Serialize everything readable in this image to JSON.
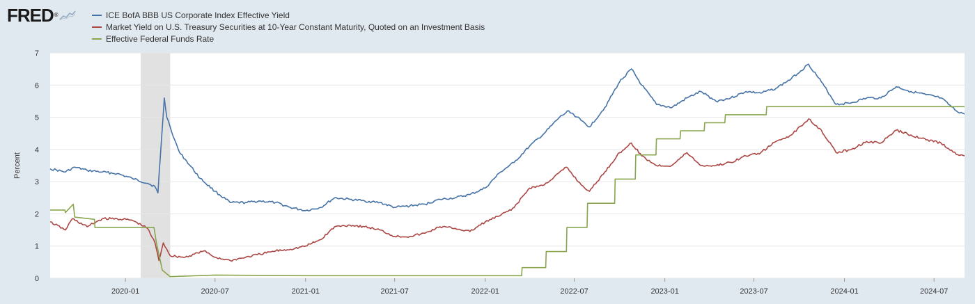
{
  "logo": {
    "text": "FRED",
    "reg": "®",
    "icon": "line-chart-icon"
  },
  "chart_data": {
    "type": "line",
    "title": "",
    "xlabel": "",
    "ylabel": "Percent",
    "ylim": [
      0,
      7
    ],
    "yticks": [
      "0",
      "1",
      "2",
      "3",
      "4",
      "5",
      "6",
      "7"
    ],
    "xticks": [
      "2020-01",
      "2020-07",
      "2021-01",
      "2021-07",
      "2022-01",
      "2022-07",
      "2023-01",
      "2023-07",
      "2024-01",
      "2024-07"
    ],
    "x_range": [
      "2019-08",
      "2024-09"
    ],
    "grid": true,
    "legend": "top-left",
    "recession": {
      "start": "2020-02",
      "end": "2020-04",
      "color": "#e1e1e1"
    },
    "series": [
      {
        "name": "ICE BofA BBB US Corporate Index Effective Yield",
        "color": "#4572a7",
        "points": [
          [
            "2019-08-01",
            3.4
          ],
          [
            "2019-09-01",
            3.3
          ],
          [
            "2019-09-20",
            3.45
          ],
          [
            "2019-10-15",
            3.35
          ],
          [
            "2019-11-15",
            3.3
          ],
          [
            "2019-12-15",
            3.25
          ],
          [
            "2020-01-15",
            3.1
          ],
          [
            "2020-02-15",
            2.95
          ],
          [
            "2020-03-01",
            2.85
          ],
          [
            "2020-03-07",
            2.65
          ],
          [
            "2020-03-12",
            3.8
          ],
          [
            "2020-03-20",
            5.6
          ],
          [
            "2020-03-25",
            5.0
          ],
          [
            "2020-04-01",
            4.7
          ],
          [
            "2020-04-10",
            4.3
          ],
          [
            "2020-04-20",
            3.9
          ],
          [
            "2020-05-01",
            3.7
          ],
          [
            "2020-06-01",
            3.1
          ],
          [
            "2020-07-01",
            2.7
          ],
          [
            "2020-08-01",
            2.35
          ],
          [
            "2020-09-01",
            2.35
          ],
          [
            "2020-10-01",
            2.4
          ],
          [
            "2020-11-01",
            2.35
          ],
          [
            "2020-12-01",
            2.2
          ],
          [
            "2021-01-01",
            2.1
          ],
          [
            "2021-02-01",
            2.2
          ],
          [
            "2021-03-01",
            2.5
          ],
          [
            "2021-04-01",
            2.45
          ],
          [
            "2021-05-01",
            2.4
          ],
          [
            "2021-06-01",
            2.35
          ],
          [
            "2021-07-01",
            2.2
          ],
          [
            "2021-08-01",
            2.25
          ],
          [
            "2021-09-01",
            2.3
          ],
          [
            "2021-10-01",
            2.45
          ],
          [
            "2021-11-01",
            2.5
          ],
          [
            "2021-12-01",
            2.6
          ],
          [
            "2022-01-01",
            2.8
          ],
          [
            "2022-02-01",
            3.3
          ],
          [
            "2022-03-01",
            3.6
          ],
          [
            "2022-04-01",
            4.1
          ],
          [
            "2022-05-01",
            4.5
          ],
          [
            "2022-06-01",
            5.0
          ],
          [
            "2022-06-20",
            5.2
          ],
          [
            "2022-07-15",
            4.9
          ],
          [
            "2022-08-01",
            4.7
          ],
          [
            "2022-09-01",
            5.3
          ],
          [
            "2022-10-01",
            6.1
          ],
          [
            "2022-10-25",
            6.5
          ],
          [
            "2022-11-15",
            6.0
          ],
          [
            "2022-12-15",
            5.4
          ],
          [
            "2023-01-15",
            5.3
          ],
          [
            "2023-02-15",
            5.6
          ],
          [
            "2023-03-15",
            5.8
          ],
          [
            "2023-04-15",
            5.5
          ],
          [
            "2023-05-15",
            5.6
          ],
          [
            "2023-06-15",
            5.8
          ],
          [
            "2023-07-15",
            5.75
          ],
          [
            "2023-08-15",
            5.9
          ],
          [
            "2023-09-15",
            6.2
          ],
          [
            "2023-10-20",
            6.65
          ],
          [
            "2023-11-15",
            6.1
          ],
          [
            "2023-12-15",
            5.4
          ],
          [
            "2024-01-15",
            5.45
          ],
          [
            "2024-02-15",
            5.6
          ],
          [
            "2024-03-15",
            5.6
          ],
          [
            "2024-04-15",
            5.95
          ],
          [
            "2024-05-15",
            5.8
          ],
          [
            "2024-06-15",
            5.7
          ],
          [
            "2024-07-15",
            5.6
          ],
          [
            "2024-08-15",
            5.2
          ],
          [
            "2024-09-01",
            5.1
          ]
        ]
      },
      {
        "name": "Market Yield on U.S. Treasury Securities at 10-Year Constant Maturity, Quoted on an Investment Basis",
        "color": "#aa4643",
        "points": [
          [
            "2019-08-01",
            1.75
          ],
          [
            "2019-09-01",
            1.5
          ],
          [
            "2019-09-15",
            1.85
          ],
          [
            "2019-10-15",
            1.6
          ],
          [
            "2019-11-15",
            1.85
          ],
          [
            "2019-12-15",
            1.85
          ],
          [
            "2020-01-15",
            1.8
          ],
          [
            "2020-02-15",
            1.55
          ],
          [
            "2020-03-01",
            1.1
          ],
          [
            "2020-03-09",
            0.55
          ],
          [
            "2020-03-18",
            1.1
          ],
          [
            "2020-04-01",
            0.7
          ],
          [
            "2020-05-01",
            0.65
          ],
          [
            "2020-06-08",
            0.85
          ],
          [
            "2020-07-01",
            0.65
          ],
          [
            "2020-08-01",
            0.55
          ],
          [
            "2020-09-01",
            0.65
          ],
          [
            "2020-10-01",
            0.75
          ],
          [
            "2020-11-01",
            0.85
          ],
          [
            "2020-12-01",
            0.9
          ],
          [
            "2021-01-01",
            1.0
          ],
          [
            "2021-02-01",
            1.2
          ],
          [
            "2021-03-01",
            1.6
          ],
          [
            "2021-04-01",
            1.65
          ],
          [
            "2021-05-01",
            1.6
          ],
          [
            "2021-06-01",
            1.5
          ],
          [
            "2021-07-01",
            1.3
          ],
          [
            "2021-08-01",
            1.3
          ],
          [
            "2021-09-01",
            1.4
          ],
          [
            "2021-10-01",
            1.6
          ],
          [
            "2021-11-01",
            1.55
          ],
          [
            "2021-12-01",
            1.45
          ],
          [
            "2022-01-01",
            1.75
          ],
          [
            "2022-02-01",
            1.95
          ],
          [
            "2022-03-01",
            2.2
          ],
          [
            "2022-04-01",
            2.8
          ],
          [
            "2022-05-01",
            2.9
          ],
          [
            "2022-06-15",
            3.45
          ],
          [
            "2022-07-15",
            2.9
          ],
          [
            "2022-08-01",
            2.7
          ],
          [
            "2022-09-01",
            3.3
          ],
          [
            "2022-10-01",
            3.9
          ],
          [
            "2022-10-25",
            4.2
          ],
          [
            "2022-11-15",
            3.8
          ],
          [
            "2022-12-15",
            3.5
          ],
          [
            "2023-01-15",
            3.5
          ],
          [
            "2023-02-15",
            3.9
          ],
          [
            "2023-03-15",
            3.5
          ],
          [
            "2023-04-15",
            3.5
          ],
          [
            "2023-05-15",
            3.6
          ],
          [
            "2023-06-15",
            3.8
          ],
          [
            "2023-07-15",
            3.9
          ],
          [
            "2023-08-15",
            4.25
          ],
          [
            "2023-09-15",
            4.45
          ],
          [
            "2023-10-20",
            4.95
          ],
          [
            "2023-11-15",
            4.6
          ],
          [
            "2023-12-15",
            3.9
          ],
          [
            "2024-01-15",
            4.0
          ],
          [
            "2024-02-15",
            4.25
          ],
          [
            "2024-03-15",
            4.2
          ],
          [
            "2024-04-15",
            4.6
          ],
          [
            "2024-05-15",
            4.45
          ],
          [
            "2024-06-15",
            4.3
          ],
          [
            "2024-07-15",
            4.2
          ],
          [
            "2024-08-15",
            3.85
          ],
          [
            "2024-09-01",
            3.8
          ]
        ]
      },
      {
        "name": "Effective Federal Funds Rate",
        "color": "#89a54e",
        "points": [
          [
            "2019-08-01",
            2.12
          ],
          [
            "2019-08-31",
            2.12
          ],
          [
            "2019-09-01",
            2.04
          ],
          [
            "2019-09-17",
            2.3
          ],
          [
            "2019-09-20",
            1.9
          ],
          [
            "2019-10-30",
            1.83
          ],
          [
            "2019-10-31",
            1.58
          ],
          [
            "2020-02-28",
            1.58
          ],
          [
            "2020-03-04",
            1.1
          ],
          [
            "2020-03-16",
            0.25
          ],
          [
            "2020-04-01",
            0.05
          ],
          [
            "2020-07-01",
            0.1
          ],
          [
            "2021-01-01",
            0.08
          ],
          [
            "2021-07-01",
            0.08
          ],
          [
            "2022-03-16",
            0.08
          ],
          [
            "2022-03-17",
            0.33
          ],
          [
            "2022-05-04",
            0.33
          ],
          [
            "2022-05-05",
            0.83
          ],
          [
            "2022-06-15",
            0.83
          ],
          [
            "2022-06-16",
            1.58
          ],
          [
            "2022-07-27",
            1.58
          ],
          [
            "2022-07-28",
            2.33
          ],
          [
            "2022-09-21",
            2.33
          ],
          [
            "2022-09-22",
            3.08
          ],
          [
            "2022-11-02",
            3.08
          ],
          [
            "2022-11-03",
            3.83
          ],
          [
            "2022-12-14",
            3.83
          ],
          [
            "2022-12-15",
            4.33
          ],
          [
            "2023-02-01",
            4.33
          ],
          [
            "2023-02-02",
            4.58
          ],
          [
            "2023-03-22",
            4.58
          ],
          [
            "2023-03-23",
            4.83
          ],
          [
            "2023-05-03",
            4.83
          ],
          [
            "2023-05-04",
            5.08
          ],
          [
            "2023-07-26",
            5.08
          ],
          [
            "2023-07-27",
            5.33
          ],
          [
            "2024-09-01",
            5.33
          ]
        ]
      }
    ]
  }
}
